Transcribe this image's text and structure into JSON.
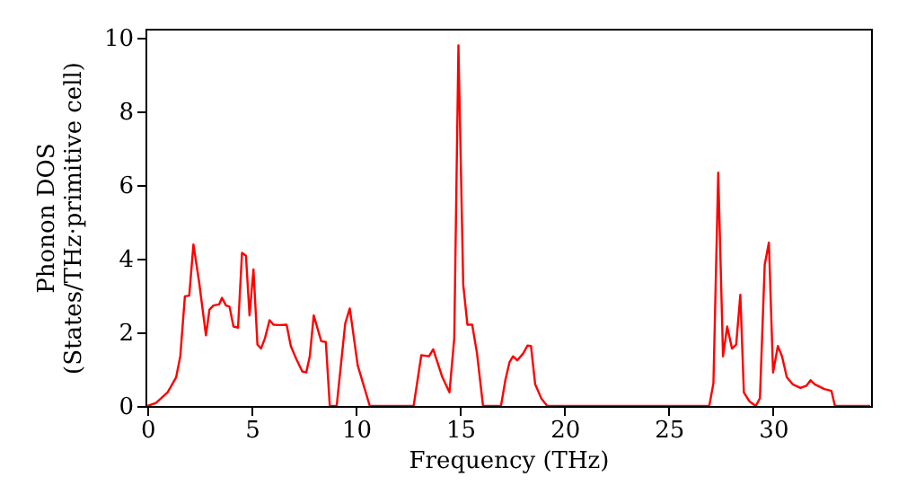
{
  "chart_data": {
    "type": "line",
    "xlabel": "Frequency (THz)",
    "ylabel": "Phonon DOS\n(States/THz·primitive cell)",
    "x": [
      0,
      0.4,
      0.96,
      1.37,
      1.57,
      1.79,
      2.0,
      2.2,
      2.47,
      2.8,
      2.97,
      3.16,
      3.43,
      3.57,
      3.76,
      3.93,
      4.12,
      4.34,
      4.53,
      4.72,
      4.89,
      5.08,
      5.27,
      5.44,
      5.63,
      5.85,
      6.04,
      6.32,
      6.67,
      6.87,
      7.14,
      7.42,
      7.61,
      7.78,
      7.97,
      8.33,
      8.55,
      8.74,
      9.07,
      9.48,
      9.7,
      10.08,
      10.66,
      12.76,
      13.13,
      13.5,
      13.7,
      14.14,
      14.48,
      14.71,
      14.91,
      15.14,
      15.34,
      15.57,
      15.8,
      16.09,
      16.95,
      17.16,
      17.36,
      17.53,
      17.73,
      18.02,
      18.22,
      18.39,
      18.59,
      18.88,
      19.17,
      26.94,
      27.14,
      27.37,
      27.6,
      27.8,
      28.03,
      28.23,
      28.43,
      28.6,
      28.86,
      29.17,
      29.37,
      29.6,
      29.8,
      30.0,
      30.23,
      30.43,
      30.66,
      30.94,
      31.31,
      31.6,
      31.8,
      32.0,
      32.46,
      32.8,
      32.97,
      34.66
    ],
    "series": [
      {
        "color": "#ff0000",
        "values": [
          0,
          0.08,
          0.37,
          0.78,
          1.35,
          2.98,
          3.0,
          4.39,
          3.38,
          1.92,
          2.62,
          2.73,
          2.76,
          2.94,
          2.73,
          2.7,
          2.16,
          2.13,
          4.16,
          4.08,
          2.46,
          3.71,
          1.67,
          1.56,
          1.84,
          2.33,
          2.21,
          2.2,
          2.21,
          1.63,
          1.27,
          0.94,
          0.91,
          1.35,
          2.46,
          1.76,
          1.74,
          0,
          0,
          2.24,
          2.65,
          1.1,
          0,
          0,
          1.38,
          1.35,
          1.54,
          0.78,
          0.37,
          1.84,
          9.8,
          3.3,
          2.21,
          2.21,
          1.43,
          0,
          0,
          0.7,
          1.19,
          1.35,
          1.24,
          1.43,
          1.64,
          1.63,
          0.59,
          0.21,
          0,
          0,
          0.62,
          6.34,
          1.35,
          2.16,
          1.56,
          1.67,
          3.02,
          0.37,
          0.13,
          0,
          0.21,
          3.84,
          4.44,
          0.91,
          1.63,
          1.35,
          0.78,
          0.59,
          0.49,
          0.55,
          0.7,
          0.59,
          0.46,
          0.41,
          0,
          0
        ]
      }
    ],
    "xlim": [
      -0.1,
      34.7
    ],
    "ylim": [
      0,
      10.25
    ],
    "xticks": [
      0,
      5,
      10,
      15,
      20,
      25,
      30
    ],
    "yticks": [
      0,
      2,
      4,
      6,
      8,
      10
    ],
    "marker": "none",
    "line_style": "solid"
  }
}
